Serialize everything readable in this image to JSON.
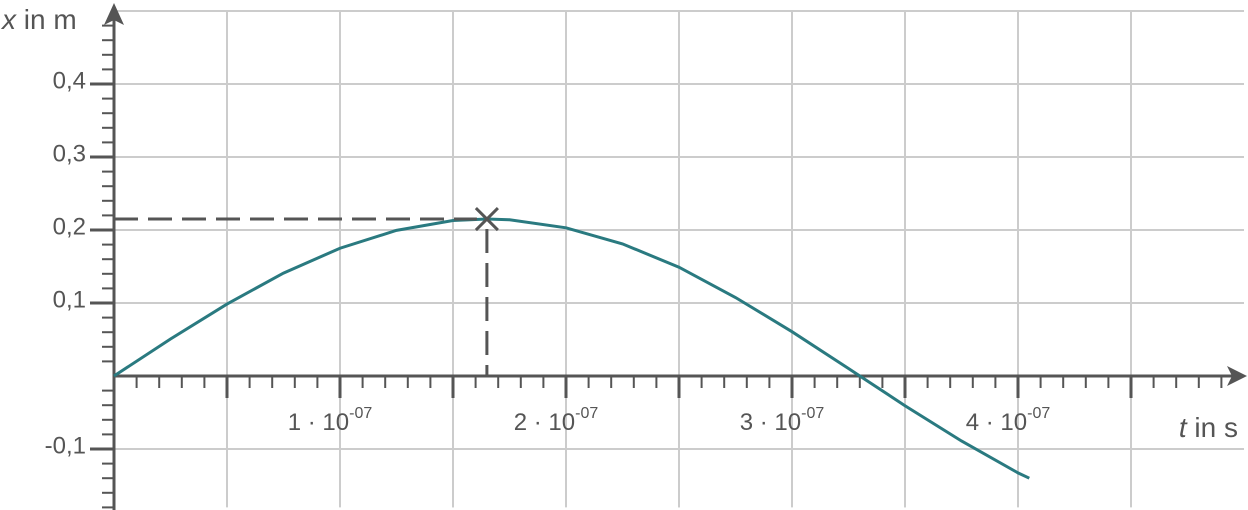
{
  "chart_data": {
    "type": "line",
    "x_label": "t in s",
    "y_label": "x in m",
    "xlim": [
      0,
      5e-07
    ],
    "ylim": [
      -0.18,
      0.5
    ],
    "xticks": [
      {
        "value": 1e-07,
        "label": "1 · 10-07"
      },
      {
        "value": 2e-07,
        "label": "2 · 10-07"
      },
      {
        "value": 3e-07,
        "label": "3 · 10-07"
      },
      {
        "value": 4e-07,
        "label": "4 · 10-07"
      }
    ],
    "yticks": [
      {
        "value": -0.1,
        "label": "-0,1"
      },
      {
        "value": 0.1,
        "label": "0,1"
      },
      {
        "value": 0.2,
        "label": "0,2"
      },
      {
        "value": 0.3,
        "label": "0,3"
      },
      {
        "value": 0.4,
        "label": "0,4"
      }
    ],
    "grid": true,
    "x": [
      0,
      2.5e-08,
      5e-08,
      7.5e-08,
      1e-07,
      1.25e-07,
      1.5e-07,
      1.65e-07,
      1.75e-07,
      2e-07,
      2.25e-07,
      2.5e-07,
      2.75e-07,
      3e-07,
      3.25e-07,
      3.5e-07,
      3.75e-07,
      4e-07,
      4.05e-07
    ],
    "series": [
      {
        "color": "#2a7a80",
        "values": [
          0,
          0.0507,
          0.0985,
          0.141,
          0.175,
          0.1995,
          0.213,
          0.215,
          0.214,
          0.203,
          0.181,
          0.149,
          0.1075,
          0.0607,
          0.0102,
          -0.0407,
          -0.089,
          -0.1327,
          -0.14
        ]
      }
    ],
    "marker": {
      "x": 1.65e-07,
      "y": 0.215
    }
  }
}
